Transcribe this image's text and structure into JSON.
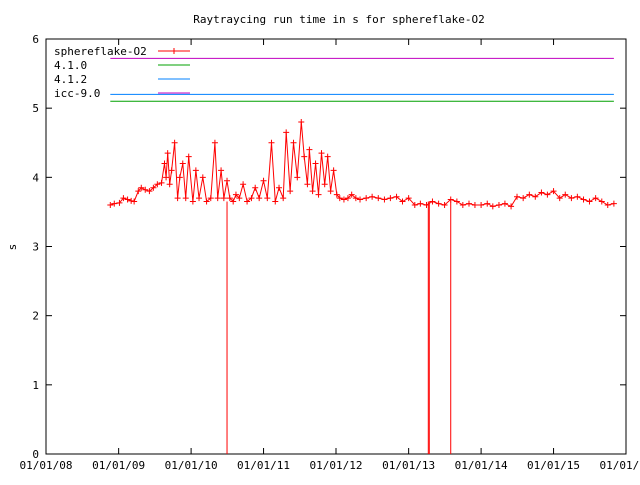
{
  "chart_data": {
    "type": "line",
    "title": "Raytraycing run time in s for sphereflake-O2",
    "xlabel": "",
    "ylabel": "s",
    "ylim": [
      0,
      6
    ],
    "xlim": [
      "2008-01-01",
      "2016-01-01"
    ],
    "y_ticks": [
      "0",
      "1",
      "2",
      "3",
      "4",
      "5",
      "6"
    ],
    "x_ticks": [
      {
        "date": "2008-01-01",
        "label": "01/01/08"
      },
      {
        "date": "2009-01-01",
        "label": "01/01/09"
      },
      {
        "date": "2010-01-01",
        "label": "01/01/10"
      },
      {
        "date": "2011-01-01",
        "label": "01/01/11"
      },
      {
        "date": "2012-01-01",
        "label": "01/01/12"
      },
      {
        "date": "2013-01-01",
        "label": "01/01/13"
      },
      {
        "date": "2014-01-01",
        "label": "01/01/14"
      },
      {
        "date": "2015-01-01",
        "label": "01/01/15"
      },
      {
        "date": "2016-01-01",
        "label": "01/01/16"
      }
    ],
    "grid": false,
    "legend_position": "top-left",
    "series": [
      {
        "name": "sphereflake-O2",
        "color": "#ff0000",
        "marker": "plus",
        "x": [
          "2008-11-20",
          "2008-12-10",
          "2009-01-05",
          "2009-01-25",
          "2009-02-15",
          "2009-03-05",
          "2009-03-20",
          "2009-04-10",
          "2009-04-25",
          "2009-05-15",
          "2009-06-05",
          "2009-06-25",
          "2009-07-15",
          "2009-08-05",
          "2009-08-20",
          "2009-08-28",
          "2009-09-05",
          "2009-09-15",
          "2009-09-25",
          "2009-10-10",
          "2009-10-25",
          "2009-11-05",
          "2009-11-20",
          "2009-12-05",
          "2009-12-20",
          "2010-01-10",
          "2010-01-25",
          "2010-02-10",
          "2010-03-01",
          "2010-03-20",
          "2010-04-10",
          "2010-05-01",
          "2010-05-15",
          "2010-06-01",
          "2010-06-15",
          "2010-07-01",
          "2010-07-15",
          "2010-08-01",
          "2010-08-15",
          "2010-09-01",
          "2010-09-20",
          "2010-10-10",
          "2010-11-01",
          "2010-11-20",
          "2010-12-10",
          "2011-01-01",
          "2011-01-20",
          "2011-02-10",
          "2011-03-01",
          "2011-03-20",
          "2011-04-10",
          "2011-04-25",
          "2011-05-15",
          "2011-06-01",
          "2011-06-20",
          "2011-07-10",
          "2011-07-25",
          "2011-08-10",
          "2011-08-20",
          "2011-09-05",
          "2011-09-20",
          "2011-10-05",
          "2011-10-20",
          "2011-11-05",
          "2011-11-20",
          "2011-12-05",
          "2011-12-20",
          "2012-01-05",
          "2012-01-20",
          "2012-02-10",
          "2012-03-01",
          "2012-03-20",
          "2012-04-10",
          "2012-05-01",
          "2012-06-01",
          "2012-07-01",
          "2012-08-01",
          "2012-09-01",
          "2012-10-01",
          "2012-11-01",
          "2012-12-01",
          "2013-01-01",
          "2013-02-01",
          "2013-03-01",
          "2013-04-01",
          "2013-05-01",
          "2013-06-01",
          "2013-07-01",
          "2013-08-01",
          "2013-09-01",
          "2013-10-01",
          "2013-11-01",
          "2013-12-01",
          "2014-01-01",
          "2014-02-01",
          "2014-03-01",
          "2014-04-01",
          "2014-05-01",
          "2014-06-01",
          "2014-07-01",
          "2014-08-01",
          "2014-09-01",
          "2014-10-01",
          "2014-11-01",
          "2014-12-01",
          "2015-01-01",
          "2015-02-01",
          "2015-03-01",
          "2015-04-01",
          "2015-05-01",
          "2015-06-01",
          "2015-07-01",
          "2015-08-01",
          "2015-09-01",
          "2015-10-01",
          "2015-11-01"
        ],
        "y": [
          3.6,
          3.62,
          3.63,
          3.7,
          3.68,
          3.66,
          3.65,
          3.8,
          3.85,
          3.82,
          3.8,
          3.85,
          3.9,
          3.92,
          4.2,
          4.0,
          4.35,
          3.9,
          4.1,
          4.5,
          3.7,
          4.0,
          4.2,
          3.7,
          4.3,
          3.65,
          4.1,
          3.7,
          4.0,
          3.65,
          3.7,
          4.5,
          3.7,
          4.1,
          3.7,
          3.95,
          3.7,
          3.65,
          3.75,
          3.7,
          3.9,
          3.65,
          3.7,
          3.85,
          3.7,
          3.95,
          3.7,
          4.5,
          3.65,
          3.85,
          3.7,
          4.65,
          3.8,
          4.5,
          4.0,
          4.8,
          4.3,
          3.9,
          4.4,
          3.8,
          4.2,
          3.75,
          4.35,
          3.9,
          4.3,
          3.8,
          4.1,
          3.75,
          3.7,
          3.68,
          3.7,
          3.75,
          3.7,
          3.68,
          3.7,
          3.72,
          3.7,
          3.68,
          3.7,
          3.72,
          3.65,
          3.7,
          3.6,
          3.62,
          3.6,
          3.65,
          3.62,
          3.6,
          3.68,
          3.65,
          3.6,
          3.62,
          3.6,
          3.6,
          3.62,
          3.58,
          3.6,
          3.62,
          3.58,
          3.72,
          3.7,
          3.75,
          3.72,
          3.78,
          3.75,
          3.8,
          3.7,
          3.75,
          3.7,
          3.72,
          3.68,
          3.65,
          3.7,
          3.65,
          3.6,
          3.62
        ]
      },
      {
        "name": "4.1.0",
        "color": "#00a000",
        "y_const": 5.1,
        "x_range": [
          "2008-11-20",
          "2015-11-01"
        ]
      },
      {
        "name": "4.1.2",
        "color": "#0080ff",
        "y_const": 5.2,
        "x_range": [
          "2008-11-20",
          "2015-11-01"
        ]
      },
      {
        "name": "icc-9.0",
        "color": "#c000c0",
        "y_const": 5.72,
        "x_range": [
          "2008-11-20",
          "2015-11-01"
        ]
      }
    ],
    "annotations": [
      {
        "type": "drop",
        "date": "2010-07-01",
        "y": 0
      },
      {
        "type": "drop",
        "date": "2013-04-10",
        "y": 0
      },
      {
        "type": "drop",
        "date": "2013-04-15",
        "y": 0
      },
      {
        "type": "drop",
        "date": "2013-08-01",
        "y": 0
      }
    ]
  }
}
